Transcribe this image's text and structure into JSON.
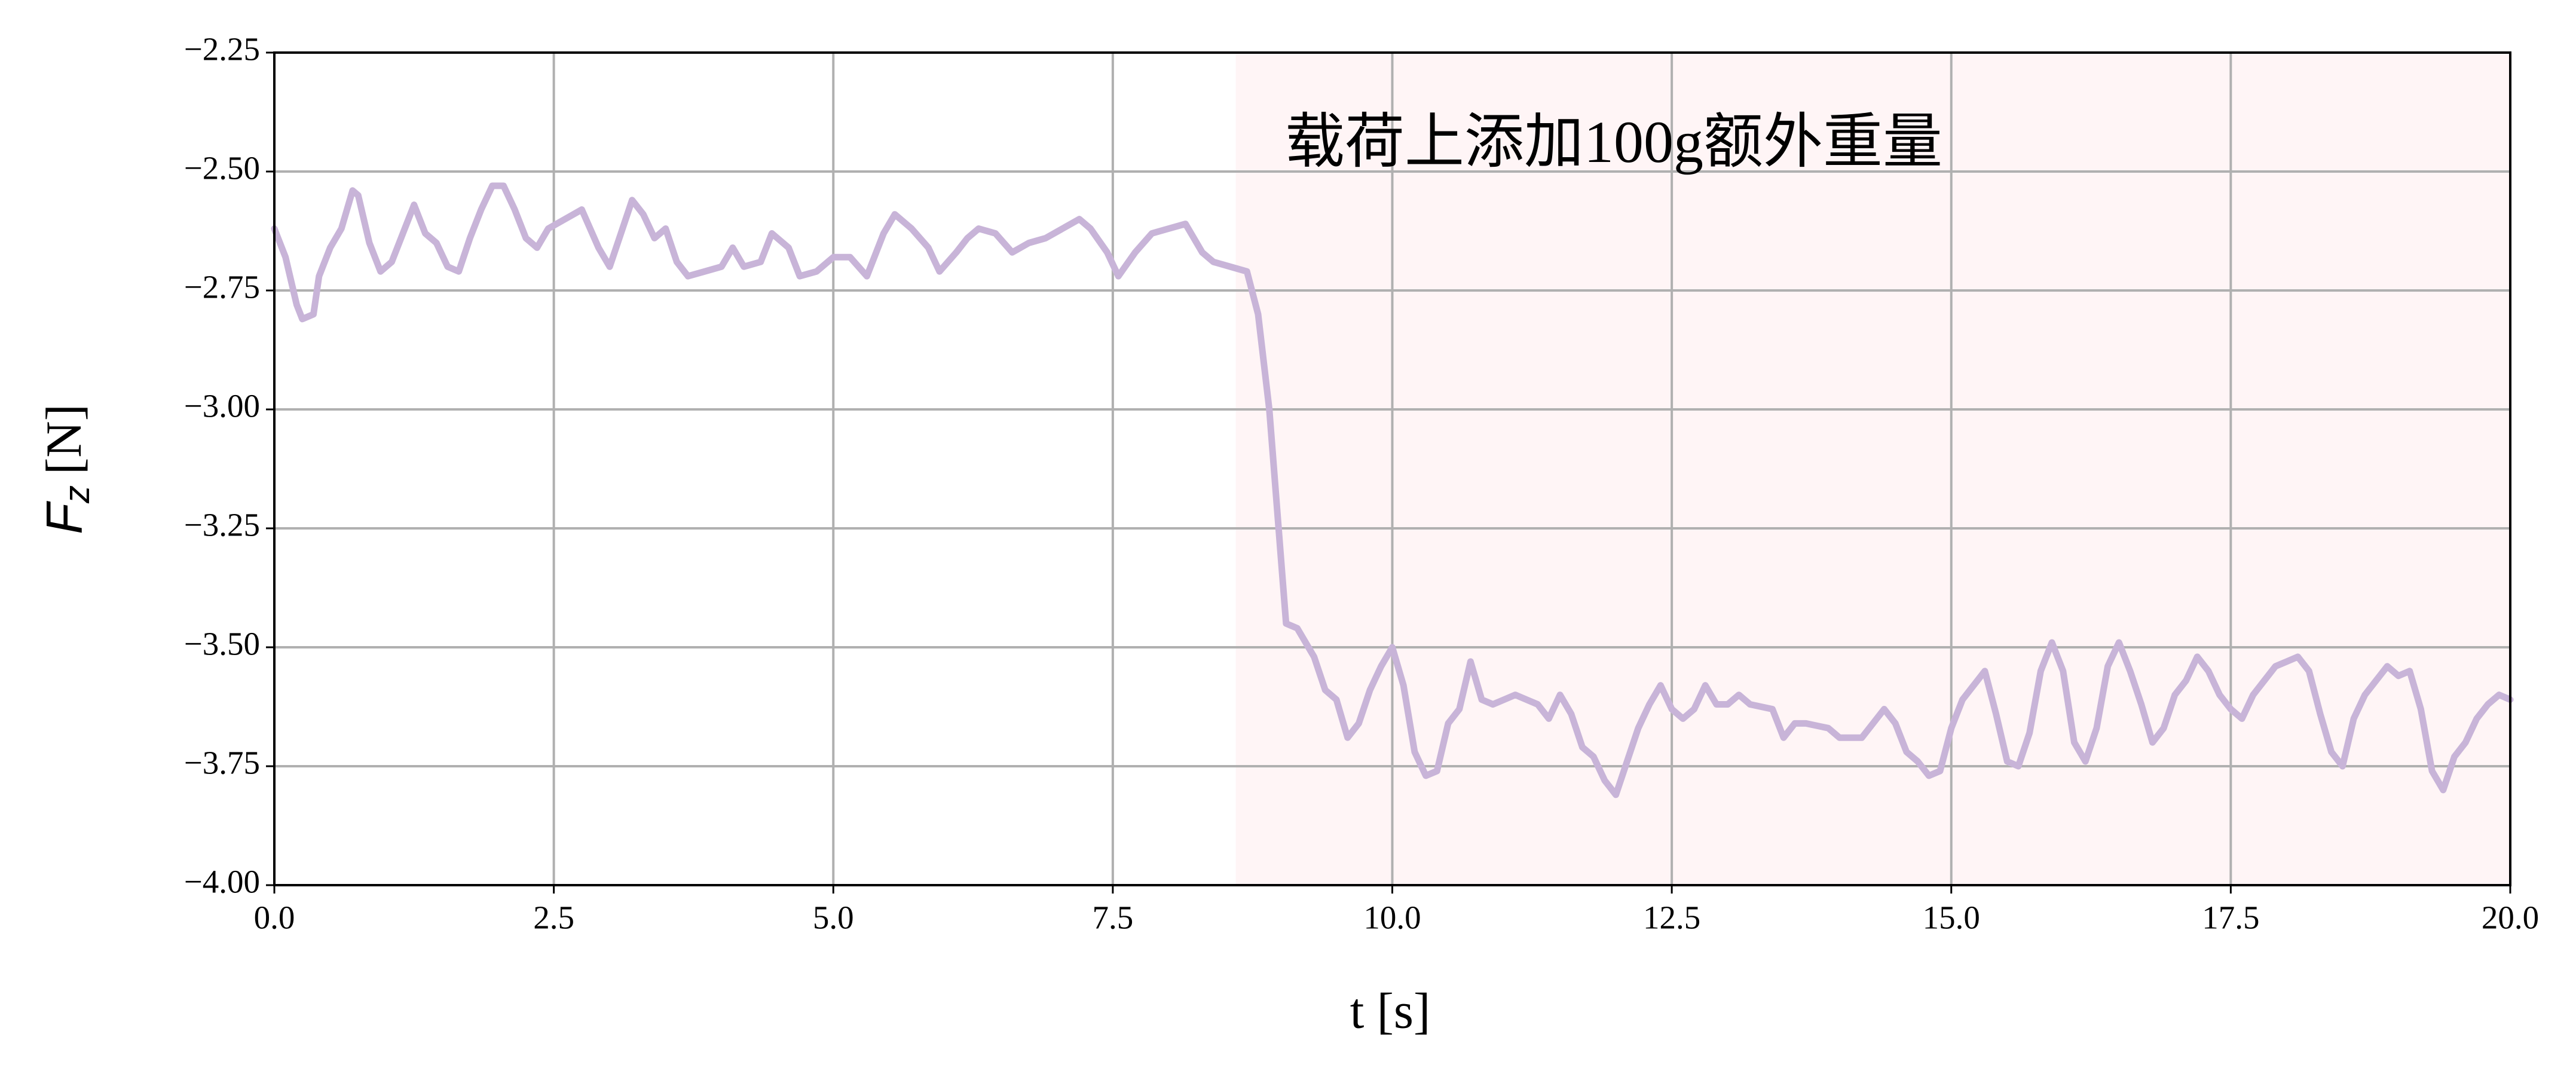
{
  "chart_data": {
    "type": "line",
    "annotation": "载荷上添加100g额外重量",
    "xlabel": "t [s]",
    "ylabel": {
      "symbol": "F",
      "subscript": "z",
      "unit": "[N]"
    },
    "highlight_span": [
      8.6,
      20
    ],
    "highlight_color": "#fff5f6",
    "grid": true,
    "xlim": [
      0,
      20
    ],
    "ylim": [
      -4.0,
      -2.25
    ],
    "xticks": [
      {
        "value": 0,
        "label": "0.0"
      },
      {
        "value": 2.5,
        "label": "2.5"
      },
      {
        "value": 5,
        "label": "5.0"
      },
      {
        "value": 7.5,
        "label": "7.5"
      },
      {
        "value": 10,
        "label": "10.0"
      },
      {
        "value": 12.5,
        "label": "12.5"
      },
      {
        "value": 15,
        "label": "15.0"
      },
      {
        "value": 17.5,
        "label": "17.5"
      },
      {
        "value": 20,
        "label": "20.0"
      }
    ],
    "yticks": [
      {
        "value": -4.0,
        "label": "−4.00"
      },
      {
        "value": -3.75,
        "label": "−3.75"
      },
      {
        "value": -3.5,
        "label": "−3.50"
      },
      {
        "value": -3.25,
        "label": "−3.25"
      },
      {
        "value": -3.0,
        "label": "−3.00"
      },
      {
        "value": -2.75,
        "label": "−2.75"
      },
      {
        "value": -2.5,
        "label": "−2.50"
      },
      {
        "value": -2.25,
        "label": "−2.25"
      }
    ],
    "x": [
      0,
      0.1,
      0.2,
      0.25,
      0.35,
      0.4,
      0.5,
      0.6,
      0.7,
      0.75,
      0.85,
      0.95,
      1.05,
      1.15,
      1.25,
      1.35,
      1.45,
      1.55,
      1.65,
      1.75,
      1.85,
      1.95,
      2.05,
      2.15,
      2.25,
      2.35,
      2.45,
      2.6,
      2.75,
      2.9,
      3.0,
      3.1,
      3.2,
      3.3,
      3.4,
      3.5,
      3.6,
      3.7,
      3.85,
      4.0,
      4.1,
      4.2,
      4.35,
      4.45,
      4.6,
      4.7,
      4.85,
      5.0,
      5.15,
      5.3,
      5.45,
      5.55,
      5.7,
      5.85,
      5.95,
      6.1,
      6.2,
      6.3,
      6.45,
      6.6,
      6.75,
      6.9,
      7.05,
      7.2,
      7.3,
      7.45,
      7.55,
      7.7,
      7.85,
      8.0,
      8.15,
      8.3,
      8.4,
      8.55,
      8.7,
      8.8,
      8.9,
      9.0,
      9.05,
      9.15,
      9.3,
      9.4,
      9.5,
      9.6,
      9.7,
      9.8,
      9.9,
      10.0,
      10.1,
      10.2,
      10.3,
      10.4,
      10.5,
      10.6,
      10.7,
      10.8,
      10.9,
      11.0,
      11.1,
      11.2,
      11.3,
      11.4,
      11.5,
      11.6,
      11.7,
      11.8,
      11.9,
      12.0,
      12.1,
      12.2,
      12.3,
      12.4,
      12.5,
      12.6,
      12.7,
      12.8,
      12.9,
      13.0,
      13.1,
      13.2,
      13.4,
      13.5,
      13.6,
      13.7,
      13.9,
      14.0,
      14.2,
      14.3,
      14.4,
      14.5,
      14.6,
      14.7,
      14.8,
      14.9,
      15.0,
      15.1,
      15.2,
      15.3,
      15.4,
      15.5,
      15.6,
      15.7,
      15.8,
      15.9,
      16.0,
      16.1,
      16.2,
      16.3,
      16.4,
      16.5,
      16.6,
      16.7,
      16.8,
      16.9,
      17.0,
      17.1,
      17.2,
      17.3,
      17.4,
      17.5,
      17.6,
      17.7,
      17.8,
      17.9,
      18.0,
      18.1,
      18.2,
      18.3,
      18.4,
      18.5,
      18.6,
      18.7,
      18.8,
      18.9,
      19.0,
      19.1,
      19.2,
      19.3,
      19.4,
      19.5,
      19.6,
      19.7,
      19.8,
      19.9,
      20.0
    ],
    "series": [
      {
        "color": "#c8b4d8",
        "values": [
          -2.62,
          -2.68,
          -2.78,
          -2.81,
          -2.8,
          -2.72,
          -2.66,
          -2.62,
          -2.54,
          -2.55,
          -2.65,
          -2.71,
          -2.69,
          -2.63,
          -2.57,
          -2.63,
          -2.65,
          -2.7,
          -2.71,
          -2.64,
          -2.58,
          -2.53,
          -2.53,
          -2.58,
          -2.64,
          -2.66,
          -2.62,
          -2.6,
          -2.58,
          -2.66,
          -2.7,
          -2.63,
          -2.56,
          -2.59,
          -2.64,
          -2.62,
          -2.69,
          -2.72,
          -2.71,
          -2.7,
          -2.66,
          -2.7,
          -2.69,
          -2.63,
          -2.66,
          -2.72,
          -2.71,
          -2.68,
          -2.68,
          -2.72,
          -2.63,
          -2.59,
          -2.62,
          -2.66,
          -2.71,
          -2.67,
          -2.64,
          -2.62,
          -2.63,
          -2.67,
          -2.65,
          -2.64,
          -2.62,
          -2.6,
          -2.62,
          -2.67,
          -2.72,
          -2.67,
          -2.63,
          -2.62,
          -2.61,
          -2.67,
          -2.69,
          -2.7,
          -2.71,
          -2.8,
          -3.0,
          -3.3,
          -3.45,
          -3.46,
          -3.52,
          -3.59,
          -3.61,
          -3.69,
          -3.66,
          -3.59,
          -3.54,
          -3.5,
          -3.58,
          -3.72,
          -3.77,
          -3.76,
          -3.66,
          -3.63,
          -3.53,
          -3.61,
          -3.62,
          -3.61,
          -3.6,
          -3.61,
          -3.62,
          -3.65,
          -3.6,
          -3.64,
          -3.71,
          -3.73,
          -3.78,
          -3.81,
          -3.74,
          -3.67,
          -3.62,
          -3.58,
          -3.63,
          -3.65,
          -3.63,
          -3.58,
          -3.62,
          -3.62,
          -3.6,
          -3.62,
          -3.63,
          -3.69,
          -3.66,
          -3.66,
          -3.67,
          -3.69,
          -3.69,
          -3.66,
          -3.63,
          -3.66,
          -3.72,
          -3.74,
          -3.77,
          -3.76,
          -3.67,
          -3.61,
          -3.58,
          -3.55,
          -3.64,
          -3.74,
          -3.75,
          -3.68,
          -3.55,
          -3.49,
          -3.55,
          -3.7,
          -3.74,
          -3.67,
          -3.54,
          -3.49,
          -3.55,
          -3.62,
          -3.7,
          -3.67,
          -3.6,
          -3.57,
          -3.52,
          -3.55,
          -3.6,
          -3.63,
          -3.65,
          -3.6,
          -3.57,
          -3.54,
          -3.53,
          -3.52,
          -3.55,
          -3.64,
          -3.72,
          -3.75,
          -3.65,
          -3.6,
          -3.57,
          -3.54,
          -3.56,
          -3.55,
          -3.63,
          -3.76,
          -3.8,
          -3.73,
          -3.7,
          -3.65,
          -3.62,
          -3.6,
          -3.61
        ]
      }
    ]
  }
}
